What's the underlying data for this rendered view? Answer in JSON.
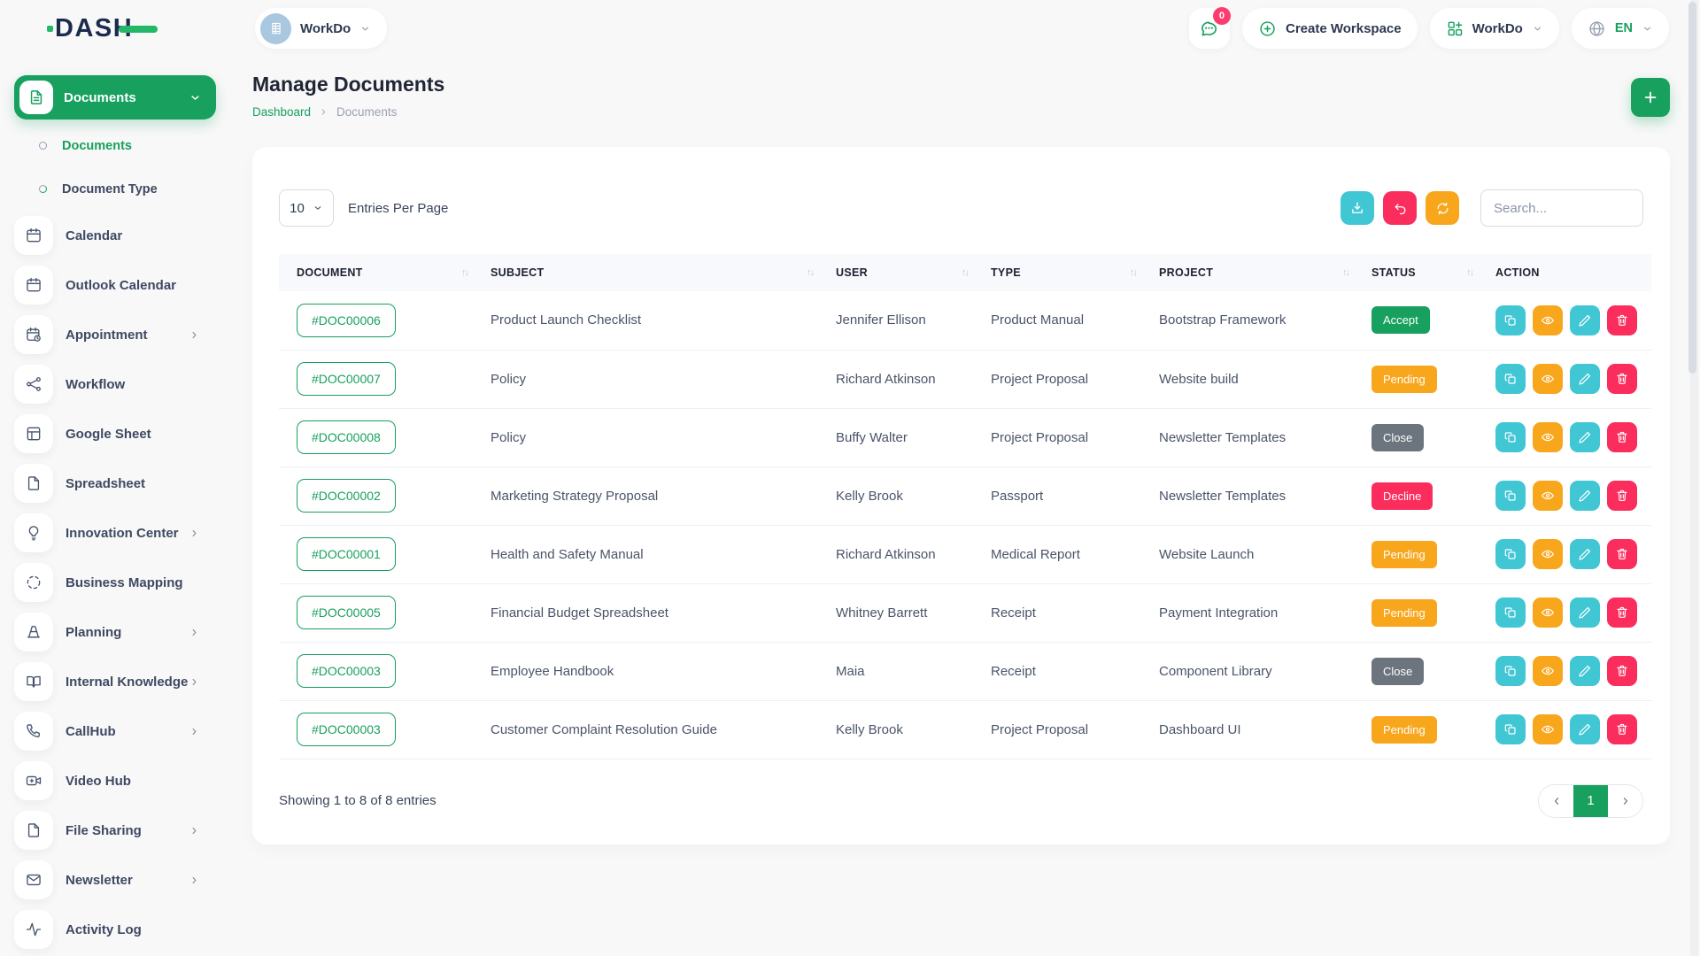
{
  "brand": {
    "logo_text": "DASH"
  },
  "topbar": {
    "workspace_selector_label": "WorkDo",
    "messages_badge": "0",
    "create_workspace_label": "Create Workspace",
    "workdo_menu_label": "WorkDo",
    "language": "EN"
  },
  "sidebar": {
    "active_group_label": "Documents",
    "submenu": [
      {
        "label": "Documents",
        "active": true
      },
      {
        "label": "Document Type",
        "active": false
      }
    ],
    "items": [
      {
        "label": "Calendar",
        "icon": "calendar",
        "arrow": false
      },
      {
        "label": "Outlook Calendar",
        "icon": "calendar",
        "arrow": false
      },
      {
        "label": "Appointment",
        "icon": "calendar-clock",
        "arrow": true
      },
      {
        "label": "Workflow",
        "icon": "workflow",
        "arrow": false
      },
      {
        "label": "Google Sheet",
        "icon": "table",
        "arrow": false
      },
      {
        "label": "Spreadsheet",
        "icon": "file",
        "arrow": false
      },
      {
        "label": "Innovation Center",
        "icon": "lightbulb",
        "arrow": true
      },
      {
        "label": "Business Mapping",
        "icon": "dashed-circle",
        "arrow": false
      },
      {
        "label": "Planning",
        "icon": "cone",
        "arrow": true
      },
      {
        "label": "Internal Knowledge",
        "icon": "book",
        "arrow": true
      },
      {
        "label": "CallHub",
        "icon": "phone",
        "arrow": true
      },
      {
        "label": "Video Hub",
        "icon": "video",
        "arrow": false
      },
      {
        "label": "File Sharing",
        "icon": "file",
        "arrow": true
      },
      {
        "label": "Newsletter",
        "icon": "mail",
        "arrow": true
      },
      {
        "label": "Activity Log",
        "icon": "activity",
        "arrow": false
      }
    ]
  },
  "page": {
    "title": "Manage Documents",
    "breadcrumb": [
      "Dashboard",
      "Documents"
    ]
  },
  "toolbar": {
    "entries_per_page": "10",
    "entries_label": "Entries Per Page",
    "search_placeholder": "Search..."
  },
  "table": {
    "columns": [
      {
        "label": "DOCUMENT",
        "sortable": true
      },
      {
        "label": "SUBJECT",
        "sortable": true
      },
      {
        "label": "USER",
        "sortable": true
      },
      {
        "label": "TYPE",
        "sortable": true
      },
      {
        "label": "PROJECT",
        "sortable": true
      },
      {
        "label": "STATUS",
        "sortable": true
      },
      {
        "label": "ACTION",
        "sortable": false
      }
    ],
    "rows": [
      {
        "document": "#DOC00006",
        "subject": "Product Launch Checklist",
        "user": "Jennifer Ellison",
        "type": "Product Manual",
        "project": "Bootstrap Framework",
        "status": "Accept"
      },
      {
        "document": "#DOC00007",
        "subject": "Policy",
        "user": "Richard Atkinson",
        "type": "Project Proposal",
        "project": "Website build",
        "status": "Pending"
      },
      {
        "document": "#DOC00008",
        "subject": "Policy",
        "user": "Buffy Walter",
        "type": "Project Proposal",
        "project": "Newsletter Templates",
        "status": "Close"
      },
      {
        "document": "#DOC00002",
        "subject": "Marketing Strategy Proposal",
        "user": "Kelly Brook",
        "type": "Passport",
        "project": "Newsletter Templates",
        "status": "Decline"
      },
      {
        "document": "#DOC00001",
        "subject": "Health and Safety Manual",
        "user": "Richard Atkinson",
        "type": "Medical Report",
        "project": "Website Launch",
        "status": "Pending"
      },
      {
        "document": "#DOC00005",
        "subject": "Financial Budget Spreadsheet",
        "user": "Whitney Barrett",
        "type": "Receipt",
        "project": "Payment Integration",
        "status": "Pending"
      },
      {
        "document": "#DOC00003",
        "subject": "Employee Handbook",
        "user": "Maia",
        "type": "Receipt",
        "project": "Component Library",
        "status": "Close"
      },
      {
        "document": "#DOC00003",
        "subject": "Customer Complaint Resolution Guide",
        "user": "Kelly Brook",
        "type": "Project Proposal",
        "project": "Dashboard UI",
        "status": "Pending"
      }
    ],
    "row_actions": [
      {
        "name": "copy",
        "icon": "copy",
        "color": "#41c6d4"
      },
      {
        "name": "view",
        "icon": "eye",
        "color": "#f8a61c"
      },
      {
        "name": "edit",
        "icon": "pencil",
        "color": "#41c6d4"
      },
      {
        "name": "delete",
        "icon": "trash",
        "color": "#fb2d5d"
      }
    ]
  },
  "footer": {
    "showing_text": "Showing 1 to 8 of 8 entries",
    "page": "1"
  },
  "colors": {
    "primary_green": "#17a05e",
    "cyan": "#41c6d4",
    "pink": "#fb2d5d",
    "orange": "#f8a61c",
    "status": {
      "Accept": "#17a05e",
      "Pending": "#f8a61c",
      "Close": "#6c757d",
      "Decline": "#fb2d5d"
    }
  }
}
